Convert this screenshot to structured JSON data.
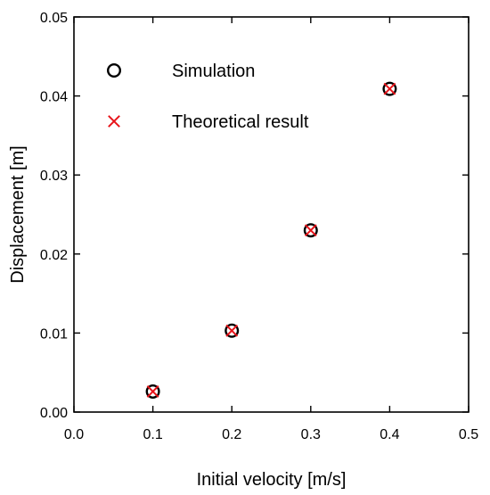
{
  "chart_data": {
    "type": "scatter",
    "xlabel": "Initial velocity [m/s]",
    "ylabel": "Displacement [m]",
    "xlim": [
      0.0,
      0.5
    ],
    "ylim": [
      0.0,
      0.05
    ],
    "xticks": [
      "0.0",
      "0.1",
      "0.2",
      "0.3",
      "0.4",
      "0.5"
    ],
    "yticks": [
      "0.00",
      "0.01",
      "0.02",
      "0.03",
      "0.04",
      "0.05"
    ],
    "grid": false,
    "legend_position": "top-left",
    "series": [
      {
        "name": "Simulation",
        "marker": "circle",
        "color": "#000000",
        "x": [
          0.1,
          0.2,
          0.3,
          0.4
        ],
        "y": [
          0.0026,
          0.0103,
          0.023,
          0.0409
        ]
      },
      {
        "name": "Theoretical result",
        "marker": "x",
        "color": "#e8141a",
        "x": [
          0.1,
          0.2,
          0.3,
          0.4
        ],
        "y": [
          0.0026,
          0.0103,
          0.023,
          0.0409
        ]
      }
    ]
  }
}
